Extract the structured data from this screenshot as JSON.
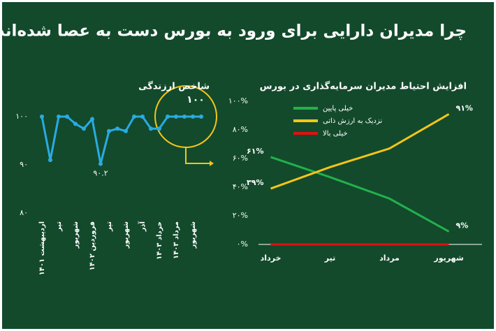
{
  "title": "چرا مدیران دارایی برای ورود به بورس دست به عصا شده‌اند؟",
  "chart_data": [
    {
      "type": "line",
      "title": "شاخص ارزندگی",
      "categories": [
        "اردیبهشت ۱۴۰۱",
        null,
        "تیر",
        null,
        "شهریور",
        null,
        "فروردین ۱۴۰۲",
        null,
        "تیر",
        null,
        "شهریور",
        null,
        "آذر",
        null,
        "خرداد ۱۴۰۳",
        null,
        "مرداد ۱۴۰۳",
        null,
        "شهریور",
        null
      ],
      "values": [
        100,
        91,
        100,
        100,
        98.5,
        97.5,
        99.5,
        90.2,
        97,
        97.5,
        97,
        100,
        100,
        97.5,
        97.5,
        100,
        100,
        100,
        100,
        100
      ],
      "value_labels": [
        null,
        null,
        null,
        null,
        null,
        null,
        null,
        "۹۰.۲",
        null,
        null,
        null,
        null,
        null,
        null,
        null,
        null,
        null,
        null,
        null,
        "۱۰۰"
      ],
      "color": "#29abe2",
      "ylim": [
        80,
        100
      ],
      "yticks": [
        {
          "value": 80,
          "label": "۸۰"
        },
        {
          "value": 90,
          "label": "۹۰"
        },
        {
          "value": 100,
          "label": "۱۰۰"
        }
      ]
    },
    {
      "type": "line",
      "title": "افزایش احتیاط مدیران سرمایه‌گذاری در بورس",
      "categories": [
        "خرداد",
        "تیر",
        "مرداد",
        "شهریور"
      ],
      "series": [
        {
          "name": "خیلی پایین",
          "color": "#22b14c",
          "values": [
            61,
            47,
            32,
            9
          ],
          "value_labels": [
            "۶۱%",
            null,
            null,
            "۹%"
          ]
        },
        {
          "name": "نزدیک به ارزش ذاتی",
          "color": "#f5c518",
          "values": [
            39,
            54,
            67,
            91
          ],
          "value_labels": [
            "۳۹%",
            null,
            null,
            "۹۱%"
          ]
        },
        {
          "name": "خیلی بالا",
          "color": "#e01010",
          "values": [
            0,
            0,
            0,
            0
          ]
        }
      ],
      "ylim": [
        0,
        100
      ],
      "yticks": [
        {
          "value": 0,
          "label": "۰%"
        },
        {
          "value": 20,
          "label": "۲۰%"
        },
        {
          "value": 40,
          "label": "۴۰%"
        },
        {
          "value": 60,
          "label": "۶۰%"
        },
        {
          "value": 80,
          "label": "۸۰%"
        },
        {
          "value": 100,
          "label": "۱۰۰%"
        }
      ],
      "legend": "upper left"
    }
  ]
}
